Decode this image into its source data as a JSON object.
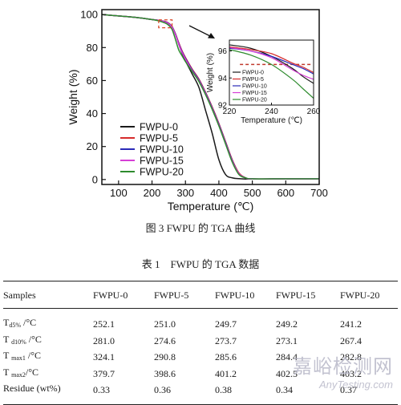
{
  "chart_data": [
    {
      "type": "line",
      "title": "",
      "xlabel": "Temperature (℃)",
      "ylabel": "Weight (%)",
      "xlim": [
        50,
        700
      ],
      "ylim": [
        -3,
        103
      ],
      "xticks": [
        100,
        200,
        300,
        400,
        500,
        600,
        700
      ],
      "yticks": [
        0,
        20,
        40,
        60,
        80,
        100
      ],
      "legend_position": "center-left",
      "series": [
        {
          "name": "FWPU-0",
          "color": "#1a1a1a",
          "x": [
            50,
            100,
            150,
            200,
            220,
            240,
            250,
            260,
            270,
            280,
            290,
            300,
            320,
            340,
            360,
            380,
            400,
            420,
            440,
            460,
            480,
            500,
            600,
            700
          ],
          "y": [
            100,
            99.2,
            98.3,
            97,
            96.5,
            95.5,
            94.5,
            92.5,
            88,
            82,
            76.5,
            72,
            64,
            56,
            42,
            28,
            12,
            3,
            1,
            0.5,
            0.3,
            0.3,
            0.3,
            0.3
          ]
        },
        {
          "name": "FWPU-5",
          "color": "#d62b2b",
          "x": [
            50,
            100,
            150,
            200,
            220,
            240,
            250,
            260,
            270,
            280,
            290,
            300,
            320,
            340,
            360,
            380,
            400,
            420,
            440,
            460,
            480,
            500,
            600,
            700
          ],
          "y": [
            100,
            99.2,
            98.3,
            97,
            96.5,
            95.8,
            94.8,
            92.8,
            88.5,
            83,
            78,
            74,
            67,
            61,
            53,
            44,
            34,
            23,
            12,
            4,
            1,
            0.4,
            0.4,
            0.4
          ]
        },
        {
          "name": "FWPU-10",
          "color": "#2a2ab8",
          "x": [
            50,
            100,
            150,
            200,
            220,
            240,
            250,
            260,
            270,
            280,
            290,
            300,
            320,
            340,
            360,
            380,
            400,
            420,
            440,
            460,
            480,
            500,
            600,
            700
          ],
          "y": [
            100,
            99.2,
            98.3,
            97,
            96.5,
            95.6,
            94.6,
            92.6,
            88.2,
            82.5,
            77.5,
            73.5,
            66.5,
            60.5,
            52.5,
            43.5,
            33.5,
            22.5,
            11.5,
            3.5,
            1,
            0.4,
            0.4,
            0.4
          ]
        },
        {
          "name": "FWPU-15",
          "color": "#d63fd6",
          "x": [
            50,
            100,
            150,
            200,
            220,
            240,
            250,
            260,
            270,
            280,
            290,
            300,
            320,
            340,
            360,
            380,
            400,
            420,
            440,
            460,
            480,
            500,
            600,
            700
          ],
          "y": [
            100,
            99.2,
            98.3,
            97,
            96.5,
            95.4,
            94.4,
            92.3,
            87.8,
            82,
            77,
            73,
            66,
            60,
            52,
            43,
            33,
            22,
            11,
            3.5,
            1,
            0.3,
            0.3,
            0.3
          ]
        },
        {
          "name": "FWPU-20",
          "color": "#2e8b2e",
          "x": [
            50,
            100,
            150,
            200,
            220,
            240,
            250,
            260,
            270,
            280,
            290,
            300,
            320,
            340,
            360,
            380,
            400,
            420,
            440,
            460,
            480,
            500,
            600,
            700
          ],
          "y": [
            100,
            99.2,
            98.3,
            97,
            96.2,
            94.8,
            93.5,
            91,
            85,
            78.5,
            75,
            71.5,
            65.5,
            59.5,
            51.5,
            42.5,
            32.5,
            21.5,
            10.5,
            3,
            1,
            0.4,
            0.4,
            0.4
          ]
        }
      ]
    },
    {
      "type": "line",
      "title": "",
      "xlabel": "Temperature (℃)",
      "ylabel": "Weight (%)",
      "xlim": [
        220,
        260
      ],
      "ylim": [
        92,
        96.8
      ],
      "xticks": [
        220,
        240,
        260
      ],
      "yticks": [
        92,
        94,
        96
      ],
      "reference_line_y": 95,
      "legend_position": "left",
      "series": [
        {
          "name": "FWPU-0",
          "color": "#1a1a1a",
          "x": [
            220,
            230,
            240,
            250,
            255,
            260
          ],
          "y": [
            96.45,
            96.2,
            95.6,
            94.7,
            94.1,
            93.6
          ]
        },
        {
          "name": "FWPU-5",
          "color": "#d62b2b",
          "x": [
            220,
            230,
            240,
            250,
            255,
            260
          ],
          "y": [
            96.3,
            96.1,
            95.8,
            95.1,
            94.8,
            94.4
          ]
        },
        {
          "name": "FWPU-10",
          "color": "#2a2ab8",
          "x": [
            220,
            230,
            240,
            250,
            255,
            260
          ],
          "y": [
            96.2,
            96.0,
            95.6,
            95.0,
            94.7,
            94.3
          ]
        },
        {
          "name": "FWPU-15",
          "color": "#d63fd6",
          "x": [
            220,
            230,
            240,
            250,
            255,
            260
          ],
          "y": [
            96.25,
            96.0,
            95.5,
            94.6,
            94.2,
            93.9
          ]
        },
        {
          "name": "FWPU-20",
          "color": "#2e8b2e",
          "x": [
            220,
            230,
            240,
            250,
            255,
            260
          ],
          "y": [
            96.1,
            95.7,
            95.0,
            93.9,
            93.2,
            92.5
          ]
        }
      ]
    }
  ],
  "figure": {
    "caption": "图 3 FWPU 的 TGA 曲线"
  },
  "table": {
    "title": "表 1　FWPU 的 TGA 数据",
    "headers": [
      "Samples",
      "FWPU-0",
      "FWPU-5",
      "FWPU-10",
      "FWPU-15",
      "FWPU-20"
    ],
    "rows": [
      {
        "label_main": "T",
        "label_sub": "d5%",
        "label_tail": " /°C",
        "values": [
          "252.1",
          "251.0",
          "249.7",
          "249.2",
          "241.2"
        ]
      },
      {
        "label_main": "T ",
        "label_sub": "d10%",
        "label_tail": " /°C",
        "values": [
          "281.0",
          "274.6",
          "273.7",
          "273.1",
          "267.4"
        ]
      },
      {
        "label_main": "T ",
        "label_sub": "max1",
        "label_tail": " /°C",
        "values": [
          "324.1",
          "290.8",
          "285.6",
          "284.4",
          "282.8"
        ]
      },
      {
        "label_main": "T ",
        "label_sub": "max2",
        "label_tail": "/°C",
        "values": [
          "379.7",
          "398.6",
          "401.2",
          "402.5",
          "403.2"
        ]
      },
      {
        "label_main": "Residue (wt%)",
        "label_sub": "",
        "label_tail": "",
        "values": [
          "0.33",
          "0.36",
          "0.38",
          "0.34",
          "0.37"
        ]
      }
    ]
  },
  "watermark": {
    "cn": "嘉峪检测网",
    "en": "AnyTesting.com"
  },
  "colors": {
    "zoom_box": "#d94a2b",
    "reference_line": "#c0392b"
  }
}
